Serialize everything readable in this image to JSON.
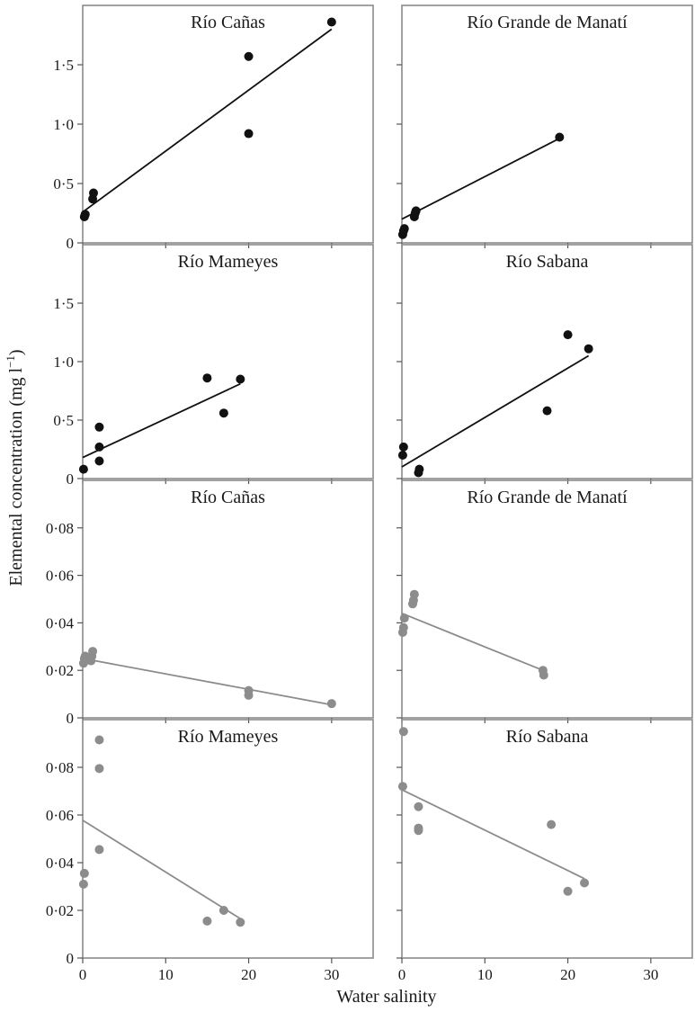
{
  "figure": {
    "ylabel_text": "Elemental concentration (mg l",
    "ylabel_sup": "−1",
    "ylabel_close": ")",
    "xlabel": "Water salinity"
  },
  "colors": {
    "dark": "#111111",
    "grey": "#8c8c8c"
  },
  "chart_data": [
    {
      "type": "scatter",
      "title": "Río Cañas",
      "color": "#111111",
      "xlim": [
        0,
        35
      ],
      "ylim": [
        0,
        2.0
      ],
      "y_ticks": [
        0,
        0.5,
        1.0,
        1.5
      ],
      "y_tick_labels": [
        "0",
        "0·5",
        "1·0",
        "1·5"
      ],
      "x_ticks": [
        0,
        10,
        20,
        30
      ],
      "x_tick_labels": [],
      "points": [
        [
          0.2,
          0.22
        ],
        [
          0.3,
          0.24
        ],
        [
          1.2,
          0.37
        ],
        [
          1.3,
          0.42
        ],
        [
          20,
          1.57
        ],
        [
          20,
          0.92
        ],
        [
          30,
          1.86
        ]
      ],
      "fit": [
        [
          0,
          0.26
        ],
        [
          30,
          1.8
        ]
      ]
    },
    {
      "type": "scatter",
      "title": "Río Grande de Manatí",
      "color": "#111111",
      "xlim": [
        0,
        35
      ],
      "ylim": [
        0,
        2.0
      ],
      "y_ticks": [
        0,
        0.5,
        1.0,
        1.5
      ],
      "y_tick_labels": [],
      "x_ticks": [
        0,
        10,
        20,
        30
      ],
      "x_tick_labels": [],
      "points": [
        [
          0.1,
          0.07
        ],
        [
          0.2,
          0.1
        ],
        [
          0.3,
          0.12
        ],
        [
          1.5,
          0.22
        ],
        [
          1.6,
          0.25
        ],
        [
          1.7,
          0.27
        ],
        [
          19,
          0.89
        ]
      ],
      "fit": [
        [
          0,
          0.2
        ],
        [
          19,
          0.88
        ]
      ]
    },
    {
      "type": "scatter",
      "title": "Río Mameyes",
      "color": "#111111",
      "xlim": [
        0,
        35
      ],
      "ylim": [
        0,
        2.0
      ],
      "y_ticks": [
        0,
        0.5,
        1.0,
        1.5
      ],
      "y_tick_labels": [
        "0",
        "0·5",
        "1·0",
        "1·5"
      ],
      "x_ticks": [
        0,
        10,
        20,
        30
      ],
      "x_tick_labels": [],
      "points": [
        [
          0.1,
          0.08
        ],
        [
          2,
          0.15
        ],
        [
          2,
          0.27
        ],
        [
          2,
          0.44
        ],
        [
          15,
          0.86
        ],
        [
          17,
          0.56
        ],
        [
          19,
          0.85
        ]
      ],
      "fit": [
        [
          0,
          0.18
        ],
        [
          19,
          0.81
        ]
      ]
    },
    {
      "type": "scatter",
      "title": "Río Sabana",
      "color": "#111111",
      "xlim": [
        0,
        35
      ],
      "ylim": [
        0,
        2.0
      ],
      "y_ticks": [
        0,
        0.5,
        1.0,
        1.5
      ],
      "y_tick_labels": [],
      "x_ticks": [
        0,
        10,
        20,
        30
      ],
      "x_tick_labels": [],
      "points": [
        [
          0.1,
          0.2
        ],
        [
          0.2,
          0.27
        ],
        [
          2,
          0.05
        ],
        [
          2.1,
          0.08
        ],
        [
          17.5,
          0.58
        ],
        [
          20,
          1.23
        ],
        [
          22.5,
          1.11
        ]
      ],
      "fit": [
        [
          0,
          0.1
        ],
        [
          22.5,
          1.05
        ]
      ]
    },
    {
      "type": "scatter",
      "title": "Río Cañas",
      "color": "#8c8c8c",
      "xlim": [
        0,
        35
      ],
      "ylim": [
        0,
        0.1
      ],
      "y_ticks": [
        0,
        0.02,
        0.04,
        0.06,
        0.08
      ],
      "y_tick_labels": [
        "0",
        "0·02",
        "0·04",
        "0·06",
        "0·08"
      ],
      "x_ticks": [
        0,
        10,
        20,
        30
      ],
      "x_tick_labels": [],
      "points": [
        [
          0.1,
          0.023
        ],
        [
          0.2,
          0.025
        ],
        [
          0.3,
          0.026
        ],
        [
          1,
          0.024
        ],
        [
          1.1,
          0.026
        ],
        [
          1.2,
          0.028
        ],
        [
          20,
          0.0115
        ],
        [
          20,
          0.0095
        ],
        [
          30,
          0.006
        ]
      ],
      "fit": [
        [
          0,
          0.025
        ],
        [
          30,
          0.0055
        ]
      ]
    },
    {
      "type": "scatter",
      "title": "Río Grande de Manatí",
      "color": "#8c8c8c",
      "xlim": [
        0,
        35
      ],
      "ylim": [
        0,
        0.1
      ],
      "y_ticks": [
        0,
        0.02,
        0.04,
        0.06,
        0.08
      ],
      "y_tick_labels": [],
      "x_ticks": [
        0,
        10,
        20,
        30
      ],
      "x_tick_labels": [],
      "points": [
        [
          0.1,
          0.036
        ],
        [
          0.2,
          0.038
        ],
        [
          0.3,
          0.042
        ],
        [
          1.3,
          0.048
        ],
        [
          1.4,
          0.0495
        ],
        [
          1.5,
          0.052
        ],
        [
          17,
          0.02
        ],
        [
          17.1,
          0.018
        ]
      ],
      "fit": [
        [
          0,
          0.044
        ],
        [
          17,
          0.02
        ]
      ]
    },
    {
      "type": "scatter",
      "title": "Río Mameyes",
      "color": "#8c8c8c",
      "xlim": [
        0,
        35
      ],
      "ylim": [
        0,
        0.1
      ],
      "y_ticks": [
        0,
        0.02,
        0.04,
        0.06,
        0.08
      ],
      "y_tick_labels": [
        "0",
        "0·02",
        "0·04",
        "0·06",
        "0·08"
      ],
      "x_ticks": [
        0,
        10,
        20,
        30
      ],
      "x_tick_labels": [
        "0",
        "10",
        "20",
        "30"
      ],
      "points": [
        [
          0.1,
          0.031
        ],
        [
          0.2,
          0.0355
        ],
        [
          2,
          0.0455
        ],
        [
          2,
          0.0795
        ],
        [
          2,
          0.0915
        ],
        [
          15,
          0.0155
        ],
        [
          17,
          0.02
        ],
        [
          19,
          0.015
        ]
      ],
      "fit": [
        [
          0,
          0.0578
        ],
        [
          19,
          0.0165
        ]
      ]
    },
    {
      "type": "scatter",
      "title": "Río Sabana",
      "color": "#8c8c8c",
      "xlim": [
        0,
        35
      ],
      "ylim": [
        0,
        0.1
      ],
      "y_ticks": [
        0,
        0.02,
        0.04,
        0.06,
        0.08
      ],
      "y_tick_labels": [],
      "x_ticks": [
        0,
        10,
        20,
        30
      ],
      "x_tick_labels": [
        "0",
        "10",
        "20",
        "30"
      ],
      "points": [
        [
          0.1,
          0.072
        ],
        [
          0.2,
          0.095
        ],
        [
          2,
          0.0535
        ],
        [
          2,
          0.0545
        ],
        [
          2,
          0.0635
        ],
        [
          18,
          0.056
        ],
        [
          20,
          0.028
        ],
        [
          22,
          0.0315
        ]
      ],
      "fit": [
        [
          0,
          0.0706
        ],
        [
          22,
          0.0333
        ]
      ]
    }
  ]
}
